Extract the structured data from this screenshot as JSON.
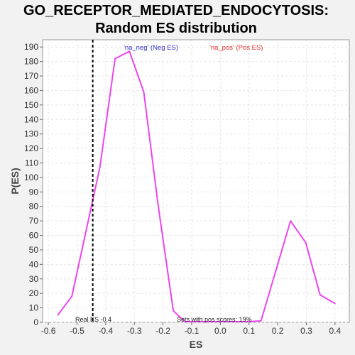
{
  "chart_data": {
    "type": "line",
    "title_line1": "GO_RECEPTOR_MEDIATED_ENDOCYTOSIS:",
    "title_line2": "Random ES distribution",
    "xlabel": "ES",
    "ylabel": "P(ES)",
    "xlim": [
      -0.62,
      0.45
    ],
    "ylim": [
      0,
      195
    ],
    "xticks": [
      -0.6,
      -0.5,
      -0.4,
      -0.3,
      -0.2,
      -0.1,
      0.0,
      0.1,
      0.2,
      0.3,
      0.4
    ],
    "xtick_labels": [
      "-0.6",
      "-0.5",
      "-0.4",
      "-0.3",
      "-0.2",
      "-0.1",
      "0.0",
      "0.1",
      "0.2",
      "0.3",
      "0.4"
    ],
    "yticks": [
      0,
      10,
      20,
      30,
      40,
      50,
      60,
      70,
      80,
      90,
      100,
      110,
      120,
      130,
      140,
      150,
      160,
      170,
      180,
      190
    ],
    "ytick_labels": [
      "0",
      "10",
      "20",
      "30",
      "40",
      "50",
      "60",
      "70",
      "80",
      "90",
      "100",
      "110",
      "120",
      "130",
      "140",
      "150",
      "160",
      "170",
      "180",
      "190"
    ],
    "grid": true,
    "legend": [
      {
        "label": "'na_neg' (Neg ES)",
        "color": "#3333cc"
      },
      {
        "label": "'na_pos' (Pos ES)",
        "color": "#e03030"
      }
    ],
    "series": [
      {
        "color": "#ee44ee",
        "x": [
          -0.567,
          -0.518,
          -0.42,
          -0.367,
          -0.317,
          -0.267,
          -0.217,
          -0.164,
          -0.124,
          0.095,
          0.142,
          0.245,
          0.298,
          0.348,
          0.4
        ],
        "values": [
          5,
          18,
          107,
          182,
          187,
          159,
          81,
          8,
          0.5,
          0.5,
          1,
          70,
          55,
          19,
          13
        ]
      }
    ],
    "real_es": {
      "x": -0.445,
      "label": "Real ES -0.4"
    },
    "annotation": "Sets with pos scores: 19%"
  }
}
